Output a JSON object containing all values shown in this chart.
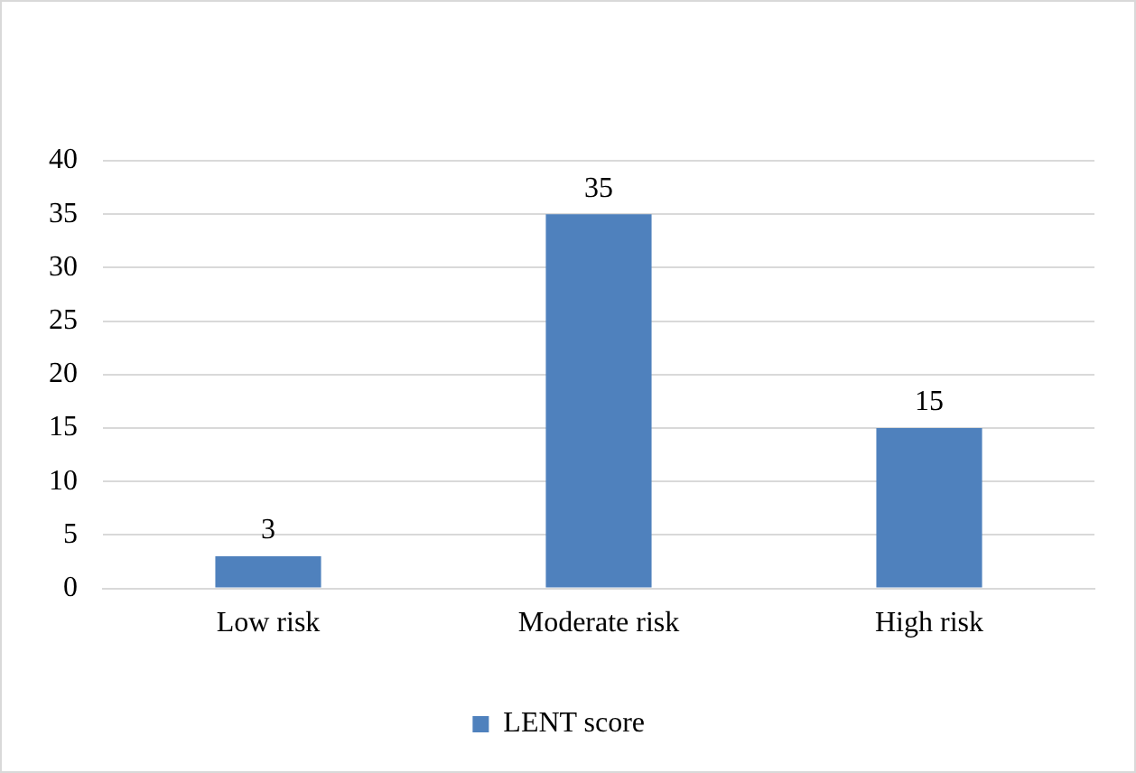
{
  "chart_data": {
    "type": "bar",
    "categories": [
      "Low risk",
      "Moderate risk",
      "High risk"
    ],
    "series": [
      {
        "name": "LENT score",
        "color": "#4f81bd",
        "values": [
          3,
          35,
          15
        ]
      }
    ],
    "ylim": [
      0,
      40
    ],
    "yticks": [
      0,
      5,
      10,
      15,
      20,
      25,
      30,
      35,
      40
    ],
    "grid": "y",
    "legend": "bottom",
    "data_labels": true
  }
}
